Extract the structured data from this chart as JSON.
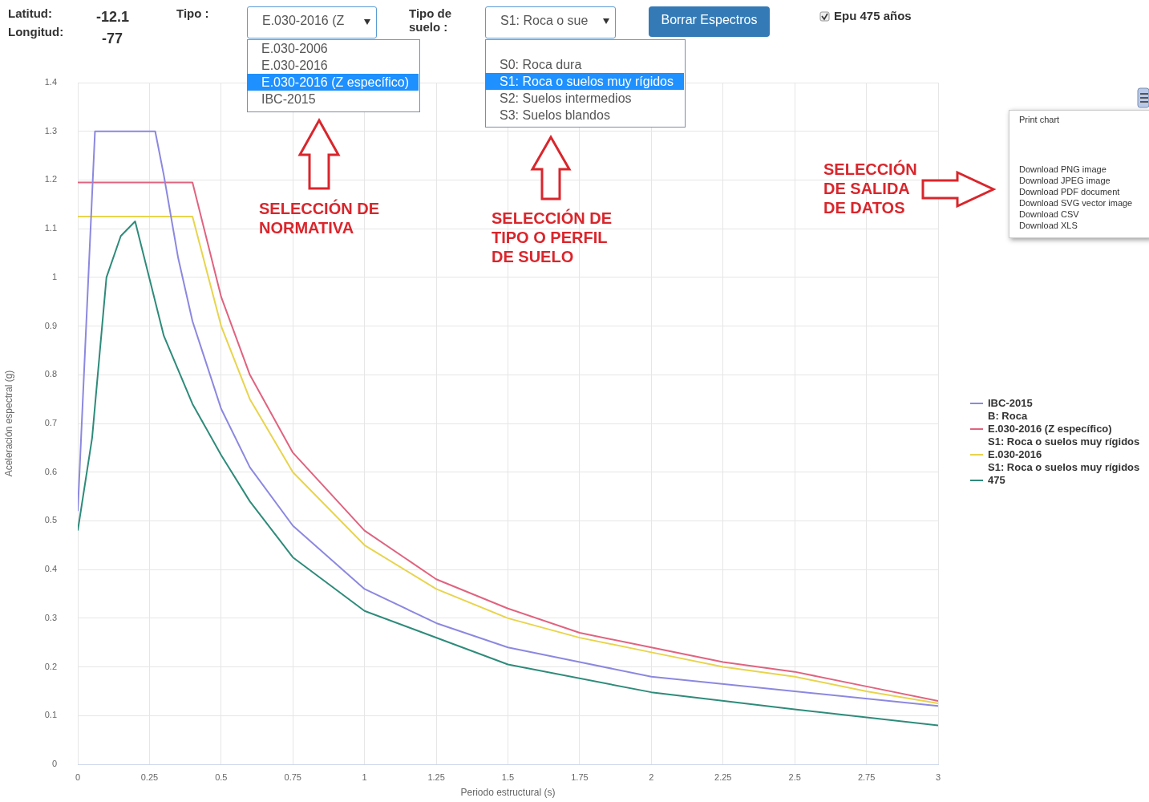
{
  "chart_data": {
    "type": "line",
    "xlabel": "Periodo estructural (s)",
    "ylabel": "Aceleración espectral (g)",
    "xlim": [
      0,
      3
    ],
    "xticks": [
      0,
      0.25,
      0.5,
      0.75,
      1,
      1.25,
      1.5,
      1.75,
      2,
      2.25,
      2.5,
      2.75,
      3
    ],
    "ylim": [
      0,
      1.4
    ],
    "yticks": [
      0,
      0.1,
      0.2,
      0.3,
      0.4,
      0.5,
      0.6,
      0.7,
      0.8,
      0.9,
      1,
      1.1,
      1.2,
      1.3,
      1.4
    ],
    "grid": true,
    "legend": "right",
    "marker": "none",
    "series": [
      {
        "name": "IBC-2015\nB: Roca",
        "color": "#8c88e0",
        "x": [
          0,
          0.06,
          0.27,
          0.3,
          0.35,
          0.4,
          0.5,
          0.6,
          0.75,
          1,
          1.25,
          1.5,
          1.75,
          2,
          2.5,
          3
        ],
        "values": [
          0.52,
          1.3,
          1.3,
          1.21,
          1.04,
          0.91,
          0.73,
          0.61,
          0.49,
          0.36,
          0.29,
          0.24,
          0.21,
          0.18,
          0.15,
          0.12
        ]
      },
      {
        "name": "E.030-2016 (Z específico)\nS1: Roca o suelos muy rígidos",
        "color": "#e0637f",
        "x": [
          0,
          0.4,
          0.5,
          0.6,
          0.75,
          1,
          1.25,
          1.5,
          1.75,
          2,
          2.25,
          2.5,
          2.75,
          3
        ],
        "values": [
          1.195,
          1.195,
          0.96,
          0.8,
          0.64,
          0.48,
          0.38,
          0.32,
          0.27,
          0.24,
          0.21,
          0.19,
          0.16,
          0.13
        ]
      },
      {
        "name": "E.030-2016\nS1: Roca o suelos muy rígidos",
        "color": "#e8d44d",
        "x": [
          0,
          0.4,
          0.5,
          0.6,
          0.75,
          1,
          1.25,
          1.5,
          1.75,
          2,
          2.25,
          2.5,
          2.75,
          3
        ],
        "values": [
          1.125,
          1.125,
          0.9,
          0.75,
          0.6,
          0.45,
          0.36,
          0.3,
          0.26,
          0.23,
          0.2,
          0.18,
          0.15,
          0.125
        ]
      },
      {
        "name": "475",
        "color": "#2e8b7a",
        "x": [
          0,
          0.05,
          0.1,
          0.15,
          0.2,
          0.3,
          0.4,
          0.5,
          0.6,
          0.75,
          1,
          1.5,
          2,
          2.5,
          3
        ],
        "values": [
          0.48,
          0.67,
          1.0,
          1.085,
          1.115,
          0.88,
          0.74,
          0.635,
          0.54,
          0.425,
          0.315,
          0.205,
          0.148,
          0.113,
          0.08
        ]
      }
    ],
    "annotations": [
      "Latitud:",
      "Longitud:",
      "-12.1",
      "-77",
      "Tipo :",
      "E.030-2016 (Z",
      "E.030-2006",
      "E.030-2016",
      "E.030-2016 (Z específico)",
      "IBC-2015",
      "Tipo de\nsuelo :",
      "S1: Roca o sue",
      "S0: Roca dura",
      "S1: Roca o suelos muy rígidos",
      "S2: Suelos intermedios",
      "S3: Suelos blandos",
      "Borrar Espectros",
      "Epu 475 años",
      "SELECCIÓN DE\nNORMATIVA",
      "SELECCIÓN DE\nTIPO O PERFIL\nDE SUELO",
      "SELECCIÓN\nDE SALIDA\nDE DATOS",
      "Print chart",
      "Download PNG image",
      "Download JPEG image",
      "Download PDF document",
      "Download SVG vector image",
      "Download CSV",
      "Download XLS"
    ]
  }
}
